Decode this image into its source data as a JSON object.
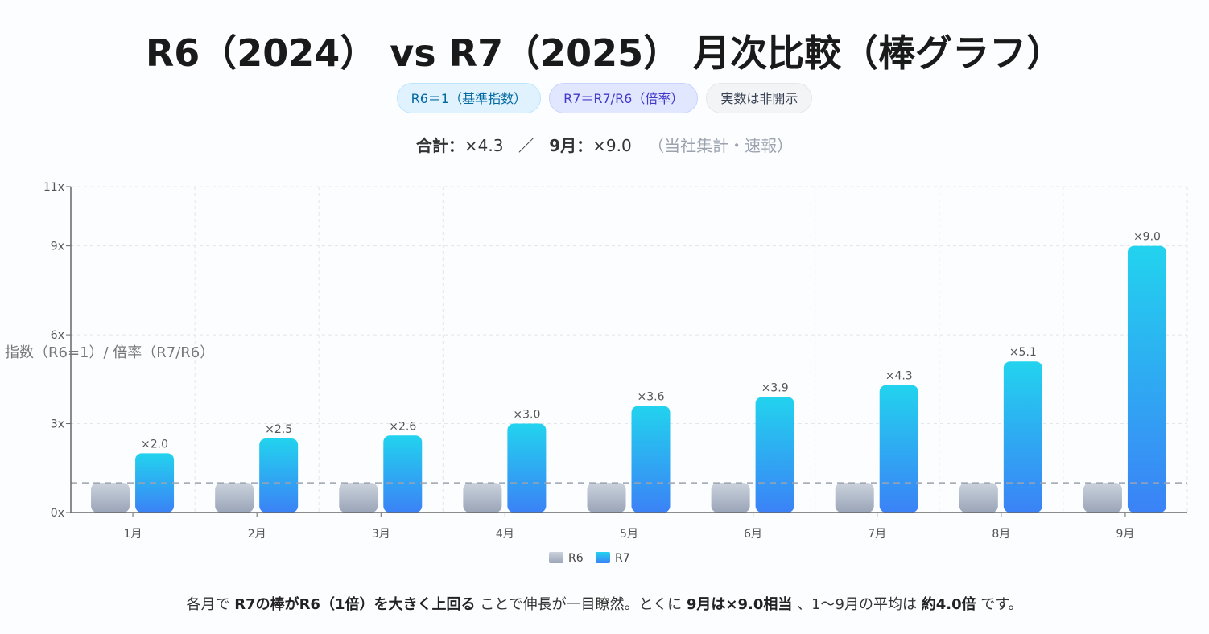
{
  "title": "R6（2024） vs R7（2025） 月次比較（棒グラフ）",
  "badges": [
    "R6＝1（基準指数）",
    "R7＝R7/R6（倍率）",
    "実数は非開示"
  ],
  "summary": {
    "total_label": "合計：",
    "total_value": "×4.3",
    "sep": "／",
    "sep_label": "9月：",
    "sep_value": "×9.0",
    "note": "（当社集計・速報）"
  },
  "footnote": {
    "p1": "各月で ",
    "b1": "R7の棒がR6（1倍）を大きく上回る",
    "p2": " ことで伸長が一目瞭然。とくに ",
    "b2": "9月は×9.0相当",
    "p3": " 、1〜9月の平均は ",
    "b3": "約4.0倍",
    "p4": " です。"
  },
  "chart_data": {
    "type": "bar",
    "ylabel": "指数（R6=1）/ 倍率（R7/R6）",
    "xlabel": "",
    "categories": [
      "1月",
      "2月",
      "3月",
      "4月",
      "5月",
      "6月",
      "7月",
      "8月",
      "9月"
    ],
    "ylim": [
      0,
      11
    ],
    "yticks": [
      0,
      3,
      6,
      9,
      11
    ],
    "ytick_labels": [
      "0x",
      "3x",
      "6x",
      "9x",
      "11x"
    ],
    "reference_line": 1,
    "grid": true,
    "legend_position": "bottom",
    "series": [
      {
        "name": "R6",
        "values": [
          1,
          1,
          1,
          1,
          1,
          1,
          1,
          1,
          1
        ],
        "color": "#a3aec0"
      },
      {
        "name": "R7",
        "values": [
          2.0,
          2.5,
          2.6,
          3.0,
          3.6,
          3.9,
          4.3,
          5.1,
          9.0
        ],
        "color": "#22d3ee",
        "color2": "#3b82f6",
        "labels": [
          "×2.0",
          "×2.5",
          "×2.6",
          "×3.0",
          "×3.6",
          "×3.9",
          "×4.3",
          "×5.1",
          "×9.0"
        ]
      }
    ]
  }
}
